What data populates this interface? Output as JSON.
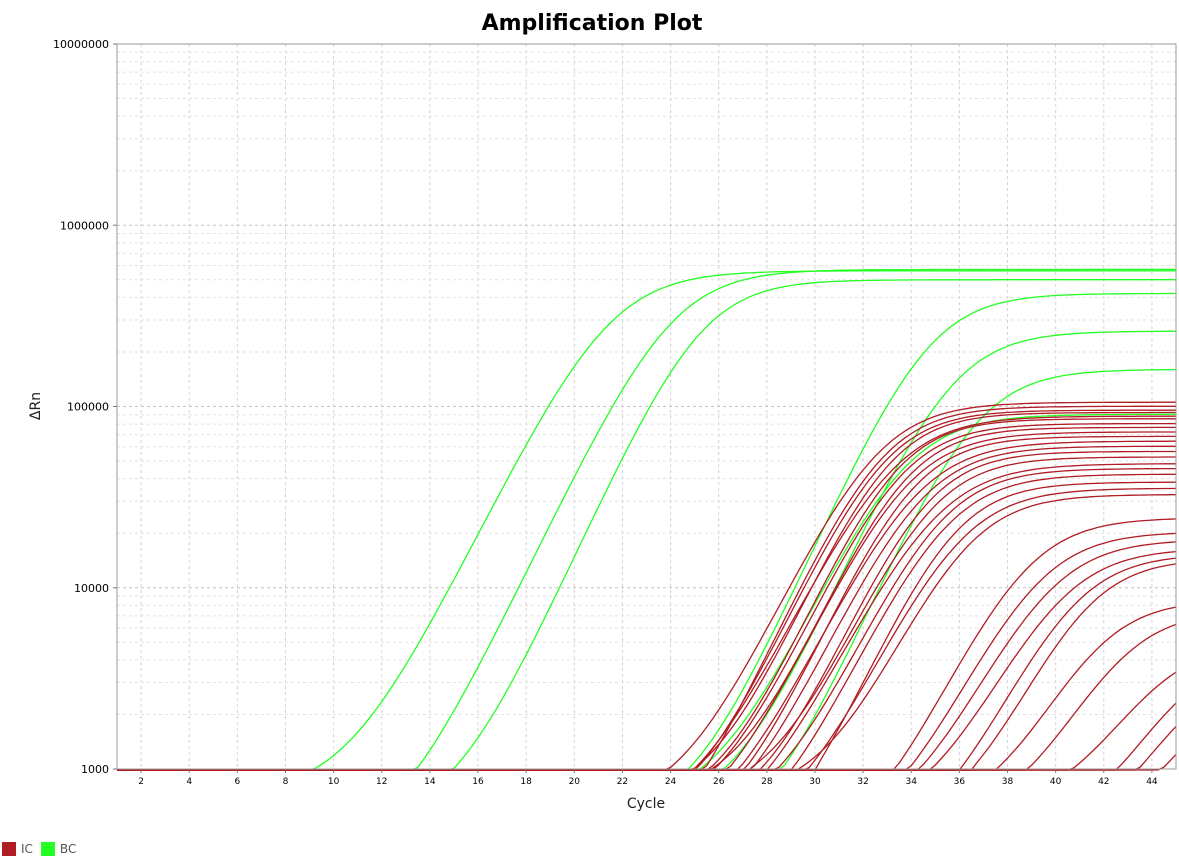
{
  "chart_data": {
    "type": "line",
    "title": "Amplification Plot",
    "xlabel": "Cycle",
    "ylabel": "ΔRn",
    "y_scale": "log",
    "xlim": [
      1,
      45
    ],
    "ylim": [
      1000,
      10000000
    ],
    "grid": true,
    "legend_position": "bottom-left",
    "x_ticks": [
      2,
      4,
      6,
      8,
      10,
      12,
      14,
      16,
      18,
      20,
      22,
      24,
      26,
      28,
      30,
      32,
      34,
      36,
      38,
      40,
      42,
      44
    ],
    "y_ticks": [
      {
        "value": 1000,
        "label": "1000"
      },
      {
        "value": 10000,
        "label": "10000"
      },
      {
        "value": 100000,
        "label": "100000"
      },
      {
        "value": 1000000,
        "label": "1000000"
      },
      {
        "value": 10000000,
        "label": "10000000"
      }
    ],
    "legend": [
      {
        "label": "IC",
        "color": "#b01c24"
      },
      {
        "label": "BC",
        "color": "#22ff22"
      }
    ],
    "series_groups": {
      "IC": {
        "color": "#b01c24",
        "curves": [
          {
            "ct": 29.3,
            "max": 105000
          },
          {
            "ct": 29.5,
            "max": 100000
          },
          {
            "ct": 29.6,
            "max": 95000
          },
          {
            "ct": 29.8,
            "max": 92000
          },
          {
            "ct": 30.0,
            "max": 88000
          },
          {
            "ct": 30.1,
            "max": 85000
          },
          {
            "ct": 30.3,
            "max": 80000
          },
          {
            "ct": 30.5,
            "max": 76000
          },
          {
            "ct": 30.6,
            "max": 72000
          },
          {
            "ct": 30.8,
            "max": 68000
          },
          {
            "ct": 31.0,
            "max": 64000
          },
          {
            "ct": 31.2,
            "max": 60000
          },
          {
            "ct": 31.4,
            "max": 56000
          },
          {
            "ct": 31.6,
            "max": 52000
          },
          {
            "ct": 31.8,
            "max": 48000
          },
          {
            "ct": 32.0,
            "max": 45000
          },
          {
            "ct": 32.2,
            "max": 42000
          },
          {
            "ct": 32.5,
            "max": 38000
          },
          {
            "ct": 32.8,
            "max": 35000
          },
          {
            "ct": 33.1,
            "max": 32000
          },
          {
            "ct": 35.5,
            "max": 24000
          },
          {
            "ct": 36.0,
            "max": 20000
          },
          {
            "ct": 36.5,
            "max": 18000
          },
          {
            "ct": 37.0,
            "max": 16000
          },
          {
            "ct": 37.5,
            "max": 15000
          },
          {
            "ct": 38.0,
            "max": 14000
          },
          {
            "ct": 38.5,
            "max": 8000
          },
          {
            "ct": 39.5,
            "max": 7000
          },
          {
            "ct": 41.0,
            "max": 4500
          },
          {
            "ct": 42.0,
            "max": 4000
          },
          {
            "ct": 42.5,
            "max": 3500
          },
          {
            "ct": 43.5,
            "max": 3200
          }
        ]
      },
      "BC": {
        "color": "#22ff22",
        "curves": [
          {
            "ct": 18.2,
            "max": 560000
          },
          {
            "ct": 20.8,
            "max": 570000
          },
          {
            "ct": 22.0,
            "max": 500000
          },
          {
            "ct": 30.5,
            "max": 90000
          },
          {
            "ct": 31.5,
            "max": 420000
          },
          {
            "ct": 32.5,
            "max": 260000
          },
          {
            "ct": 33.5,
            "max": 160000
          }
        ]
      }
    }
  }
}
